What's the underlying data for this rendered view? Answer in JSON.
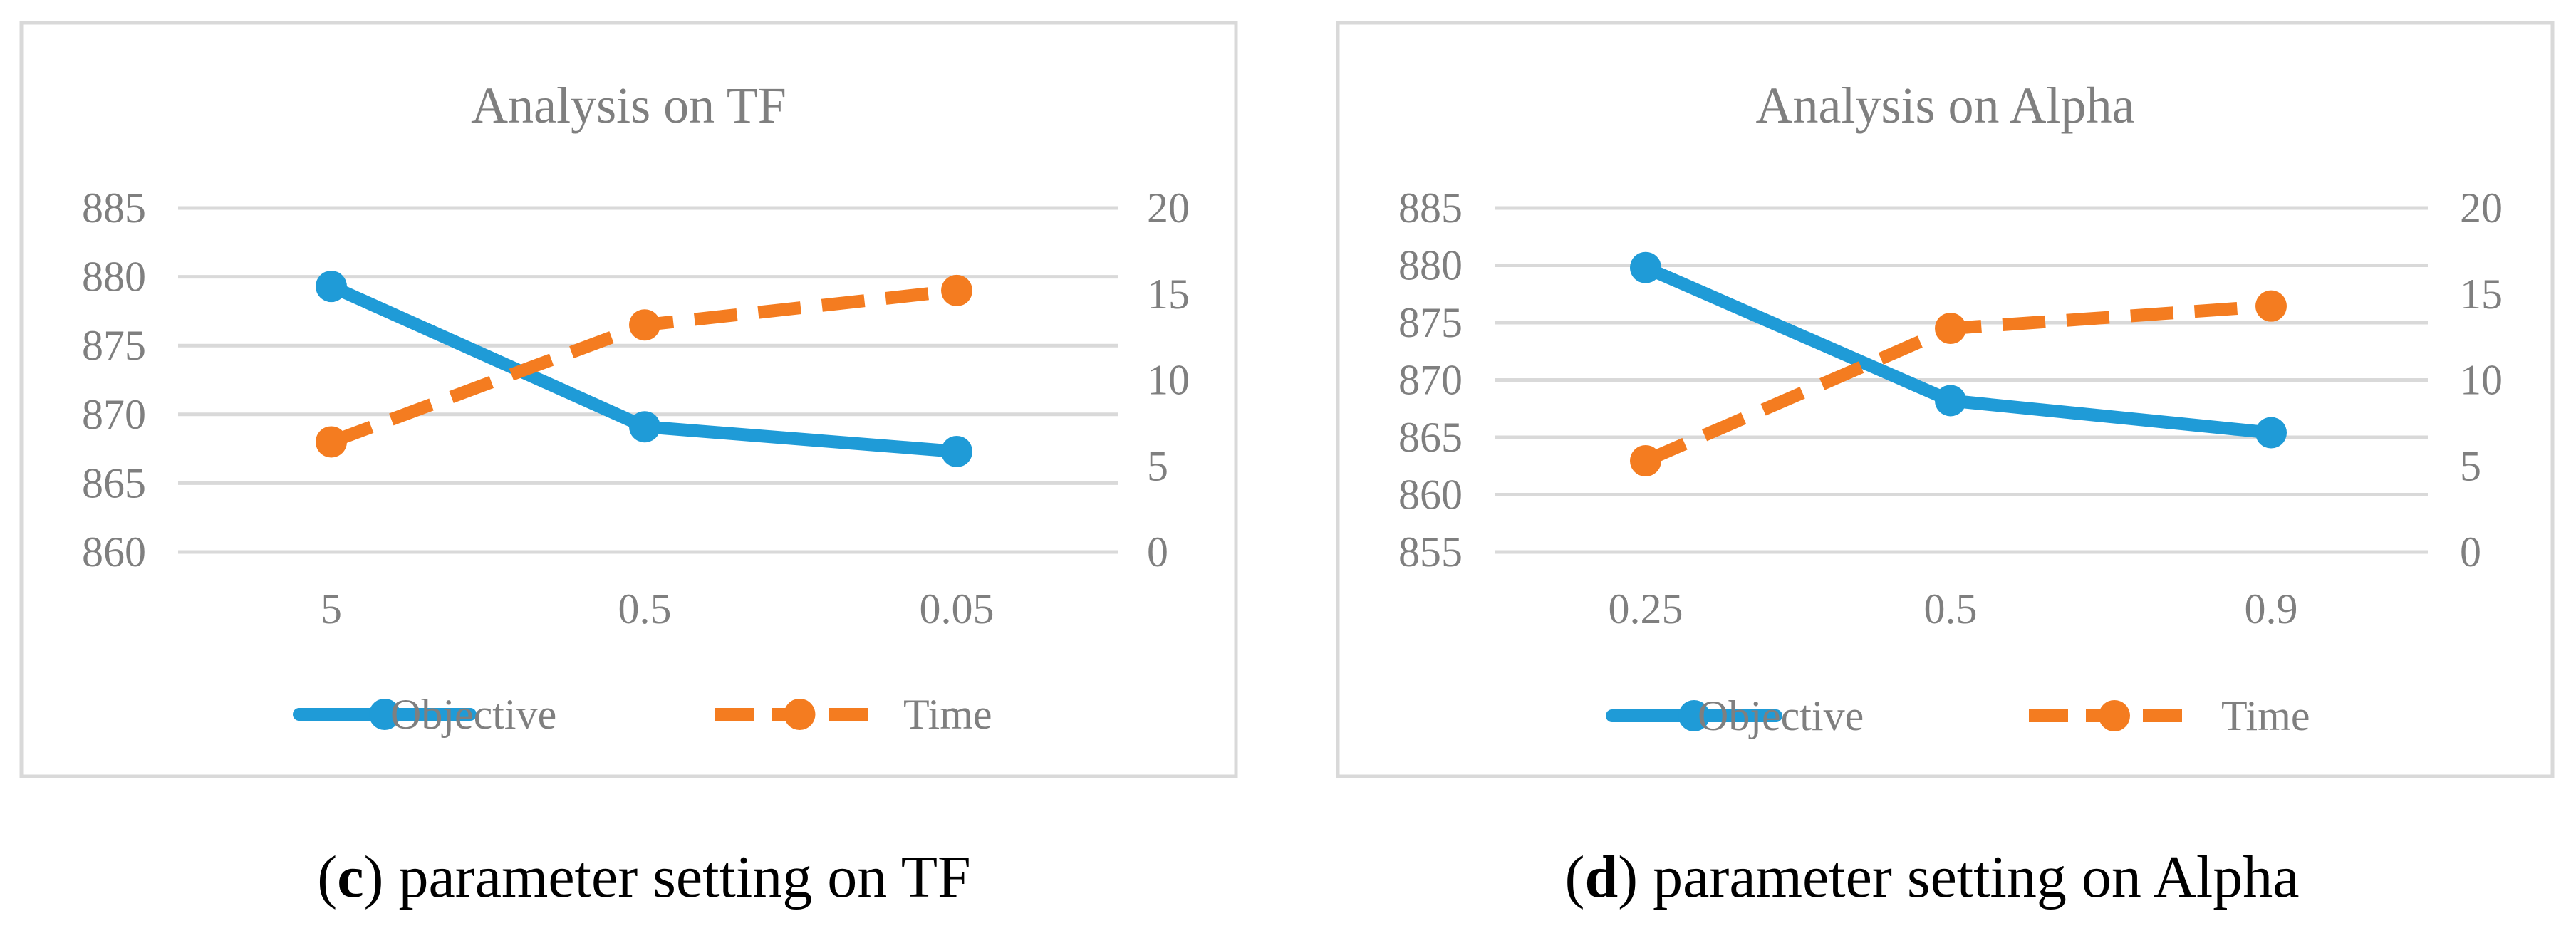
{
  "chart_data": [
    {
      "type": "line",
      "title": "Analysis on TF",
      "categories": [
        "5",
        "0.5",
        "0.05"
      ],
      "y_left": {
        "ticks": [
          "885",
          "880",
          "875",
          "870",
          "865",
          "860"
        ],
        "ylim": [
          860,
          885
        ]
      },
      "y_right": {
        "ticks": [
          "20",
          "15",
          "10",
          "5",
          "0"
        ],
        "ylim": [
          0,
          20
        ]
      },
      "series": [
        {
          "name": "Objective",
          "axis": "left",
          "color": "#1f9bd7",
          "style": "solid",
          "values": [
            879.3,
            869.1,
            867.3
          ]
        },
        {
          "name": "Time",
          "axis": "right",
          "color": "#f47c20",
          "style": "dashed",
          "values": [
            6.4,
            13.2,
            15.2
          ]
        }
      ],
      "caption_letter": "c",
      "caption_text": ") parameter setting on TF"
    },
    {
      "type": "line",
      "title": "Analysis on Alpha",
      "categories": [
        "0.25",
        "0.5",
        "0.9"
      ],
      "y_left": {
        "ticks": [
          "885",
          "880",
          "875",
          "870",
          "865",
          "860",
          "855"
        ],
        "ylim": [
          855,
          885
        ]
      },
      "y_right": {
        "ticks": [
          "20",
          "15",
          "10",
          "5",
          "0"
        ],
        "ylim": [
          0,
          20
        ]
      },
      "series": [
        {
          "name": "Objective",
          "axis": "left",
          "color": "#1f9bd7",
          "style": "solid",
          "values": [
            879.8,
            868.2,
            865.4
          ]
        },
        {
          "name": "Time",
          "axis": "right",
          "color": "#f47c20",
          "style": "dashed",
          "values": [
            5.3,
            13.0,
            14.3
          ]
        }
      ],
      "caption_letter": "d",
      "caption_text": ") parameter setting on Alpha"
    }
  ]
}
